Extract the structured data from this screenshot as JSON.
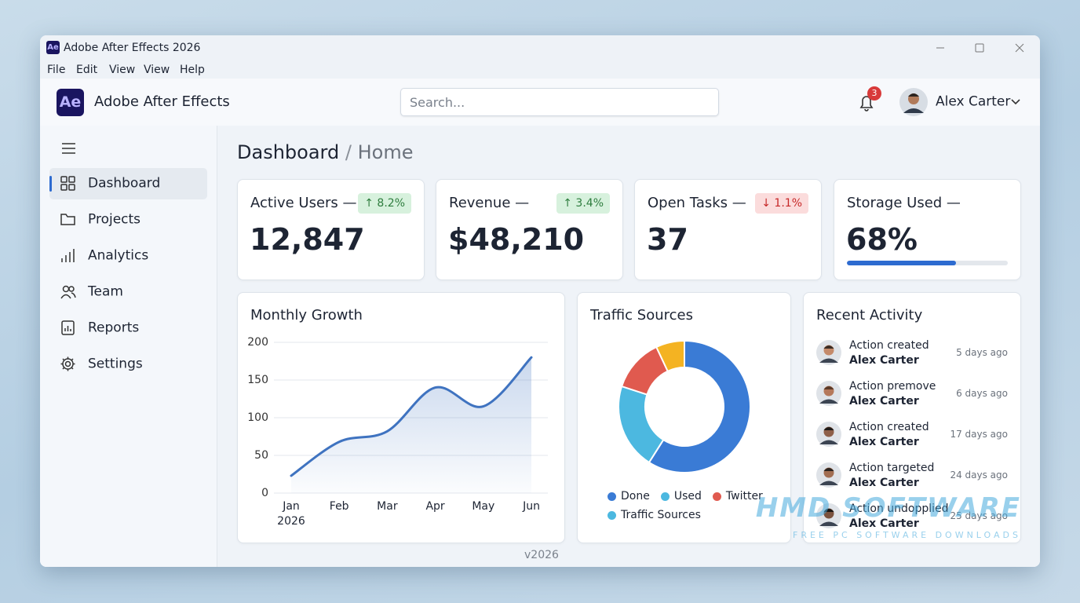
{
  "window": {
    "icon": "Ae",
    "title": "Adobe After Effects 2026"
  },
  "menu": [
    "File",
    "Edit",
    "View",
    "View",
    "Help"
  ],
  "header": {
    "icon": "Ae",
    "app_name": "Adobe After Effects",
    "search_placeholder": "Search...",
    "notifications": 3,
    "user": "Alex Carter"
  },
  "sidebar": {
    "items": [
      "Dashboard",
      "Projects",
      "Analytics",
      "Team",
      "Reports",
      "Settings"
    ],
    "active": 0
  },
  "breadcrumb": {
    "current": "Dashboard",
    "separator": "/",
    "parent": "Home"
  },
  "kpis": [
    {
      "label": "Active Users —",
      "value": "12,847",
      "badge": "↑ 8.2%",
      "trend": "up"
    },
    {
      "label": "Revenue —",
      "value": "$48,210",
      "badge": "↑ 3.4%",
      "trend": "up"
    },
    {
      "label": "Open Tasks —",
      "value": "37",
      "badge": "↓ 1.1%",
      "trend": "down"
    },
    {
      "label": "Storage Used —",
      "value": "68%",
      "progress": 68
    }
  ],
  "chart_data": [
    {
      "type": "line",
      "title": "Monthly Growth",
      "categories": [
        "Jan 2026",
        "Feb",
        "Mar",
        "Apr",
        "May",
        "Jun"
      ],
      "values": [
        23,
        68,
        82,
        140,
        115,
        180
      ],
      "color": "#3f73c0",
      "ylim": [
        0,
        200
      ],
      "yticks": [
        0,
        50,
        100,
        150,
        200
      ],
      "grid": true
    },
    {
      "type": "pie",
      "title": "Traffic Sources",
      "categories": [
        "Done",
        "Used",
        "Twitter",
        "Traffic Sources"
      ],
      "values": [
        59,
        21,
        13,
        7
      ],
      "colors": [
        "#3a7bd5",
        "#4cb8e0",
        "#e05a4f",
        "#f4b322"
      ],
      "legend_colors": [
        "#3a7bd5",
        "#4cb8e0",
        "#e05a4f",
        "#4cb8e0"
      ],
      "donut": true
    }
  ],
  "activity": {
    "title": "Recent Activity",
    "items": [
      {
        "action": "Action created",
        "user": "Alex Carter",
        "time": "5 days ago"
      },
      {
        "action": "Action premove",
        "user": "Alex Carter",
        "time": "6 days ago"
      },
      {
        "action": "Action created",
        "user": "Alex Carter",
        "time": "17 days ago"
      },
      {
        "action": "Action targeted",
        "user": "Alex Carter",
        "time": "24 days ago"
      },
      {
        "action": "Action undopplied",
        "user": "Alex Carter",
        "time": "25 days ago"
      }
    ]
  },
  "footer": {
    "version": "v2026"
  },
  "watermark": {
    "title": "HMD SOFTWARE",
    "subtitle": "FREE PC SOFTWARE DOWNLOADS"
  }
}
